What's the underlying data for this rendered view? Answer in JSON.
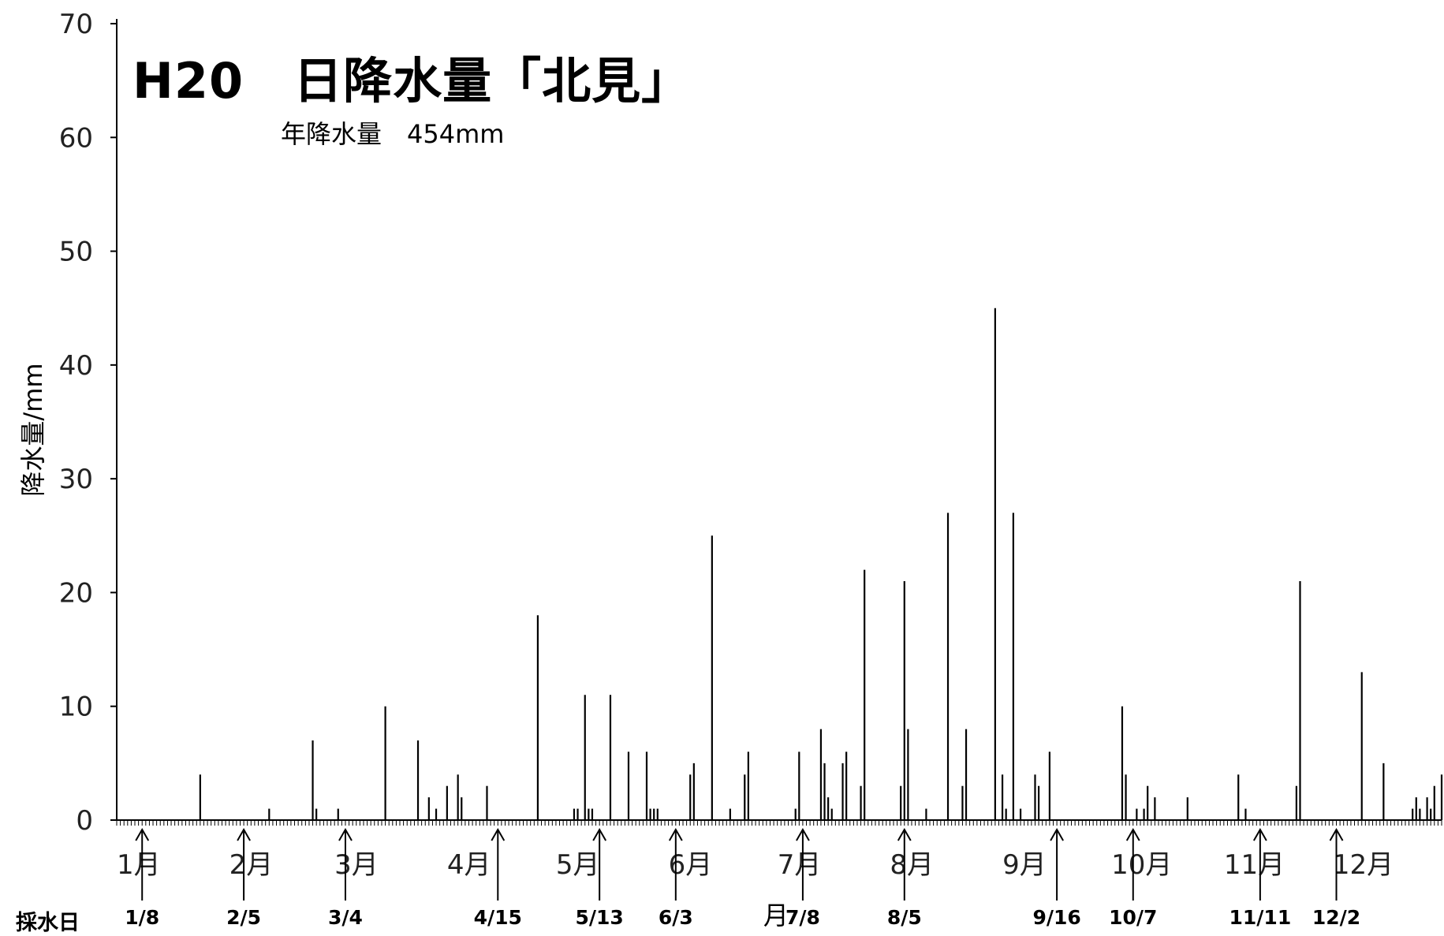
{
  "chart_data": {
    "type": "bar",
    "title": "H20　日降水量「北見」",
    "subtitle": "年降水量　454mm",
    "ylabel": "降水量/mm",
    "ylim": [
      0,
      70
    ],
    "yticks": [
      "0",
      "10",
      "20",
      "30",
      "40",
      "50",
      "60",
      "70"
    ],
    "x_range_days": [
      1,
      366
    ],
    "month_labels": [
      {
        "label": "1月",
        "day": 1
      },
      {
        "label": "2月",
        "day": 32
      },
      {
        "label": "3月",
        "day": 61
      },
      {
        "label": "4月",
        "day": 92
      },
      {
        "label": "5月",
        "day": 122
      },
      {
        "label": "6月",
        "day": 153
      },
      {
        "label": "7月",
        "day": 183
      },
      {
        "label": "8月",
        "day": 214
      },
      {
        "label": "9月",
        "day": 245
      },
      {
        "label": "10月",
        "day": 275
      },
      {
        "label": "11月",
        "day": 306
      },
      {
        "label": "12月",
        "day": 336
      }
    ],
    "sampling_label": "採水日",
    "sampling_dates": [
      {
        "label": "1/8",
        "day": 8
      },
      {
        "label": "2/5",
        "day": 36
      },
      {
        "label": "3/4",
        "day": 64
      },
      {
        "label": "4/15",
        "day": 106
      },
      {
        "label": "5/13",
        "day": 134
      },
      {
        "label": "6/3",
        "day": 155
      },
      {
        "label": "7/8",
        "day": 190
      },
      {
        "label": "8/5",
        "day": 218
      },
      {
        "label": "9/16",
        "day": 260
      },
      {
        "label": "10/7",
        "day": 281
      },
      {
        "label": "11/11",
        "day": 316
      },
      {
        "label": "12/2",
        "day": 337
      }
    ],
    "stray_label": "月",
    "grid": false,
    "bars": [
      {
        "day": 24,
        "value": 4
      },
      {
        "day": 43,
        "value": 1
      },
      {
        "day": 55,
        "value": 7
      },
      {
        "day": 56,
        "value": 1
      },
      {
        "day": 62,
        "value": 1
      },
      {
        "day": 75,
        "value": 10
      },
      {
        "day": 84,
        "value": 7
      },
      {
        "day": 87,
        "value": 2
      },
      {
        "day": 89,
        "value": 1
      },
      {
        "day": 92,
        "value": 3
      },
      {
        "day": 95,
        "value": 4
      },
      {
        "day": 96,
        "value": 2
      },
      {
        "day": 103,
        "value": 3
      },
      {
        "day": 117,
        "value": 18
      },
      {
        "day": 127,
        "value": 1
      },
      {
        "day": 128,
        "value": 1
      },
      {
        "day": 130,
        "value": 11
      },
      {
        "day": 131,
        "value": 1
      },
      {
        "day": 132,
        "value": 1
      },
      {
        "day": 137,
        "value": 11
      },
      {
        "day": 142,
        "value": 6
      },
      {
        "day": 147,
        "value": 6
      },
      {
        "day": 148,
        "value": 1
      },
      {
        "day": 149,
        "value": 1
      },
      {
        "day": 150,
        "value": 1
      },
      {
        "day": 159,
        "value": 4
      },
      {
        "day": 160,
        "value": 5
      },
      {
        "day": 165,
        "value": 25
      },
      {
        "day": 170,
        "value": 1
      },
      {
        "day": 174,
        "value": 4
      },
      {
        "day": 175,
        "value": 6
      },
      {
        "day": 188,
        "value": 1
      },
      {
        "day": 189,
        "value": 6
      },
      {
        "day": 195,
        "value": 8
      },
      {
        "day": 196,
        "value": 5
      },
      {
        "day": 197,
        "value": 2
      },
      {
        "day": 198,
        "value": 1
      },
      {
        "day": 201,
        "value": 5
      },
      {
        "day": 202,
        "value": 6
      },
      {
        "day": 206,
        "value": 3
      },
      {
        "day": 207,
        "value": 22
      },
      {
        "day": 217,
        "value": 3
      },
      {
        "day": 218,
        "value": 21
      },
      {
        "day": 219,
        "value": 8
      },
      {
        "day": 224,
        "value": 1
      },
      {
        "day": 230,
        "value": 27
      },
      {
        "day": 234,
        "value": 3
      },
      {
        "day": 235,
        "value": 8
      },
      {
        "day": 243,
        "value": 45
      },
      {
        "day": 245,
        "value": 4
      },
      {
        "day": 246,
        "value": 1
      },
      {
        "day": 248,
        "value": 27
      },
      {
        "day": 250,
        "value": 1
      },
      {
        "day": 254,
        "value": 4
      },
      {
        "day": 255,
        "value": 3
      },
      {
        "day": 258,
        "value": 6
      },
      {
        "day": 278,
        "value": 10
      },
      {
        "day": 279,
        "value": 4
      },
      {
        "day": 282,
        "value": 1
      },
      {
        "day": 284,
        "value": 1
      },
      {
        "day": 285,
        "value": 3
      },
      {
        "day": 287,
        "value": 2
      },
      {
        "day": 296,
        "value": 2
      },
      {
        "day": 310,
        "value": 4
      },
      {
        "day": 312,
        "value": 1
      },
      {
        "day": 326,
        "value": 3
      },
      {
        "day": 327,
        "value": 21
      },
      {
        "day": 344,
        "value": 13
      },
      {
        "day": 350,
        "value": 5
      },
      {
        "day": 358,
        "value": 1
      },
      {
        "day": 359,
        "value": 2
      },
      {
        "day": 360,
        "value": 1
      },
      {
        "day": 362,
        "value": 2
      },
      {
        "day": 363,
        "value": 1
      },
      {
        "day": 364,
        "value": 3
      },
      {
        "day": 366,
        "value": 4
      }
    ]
  }
}
